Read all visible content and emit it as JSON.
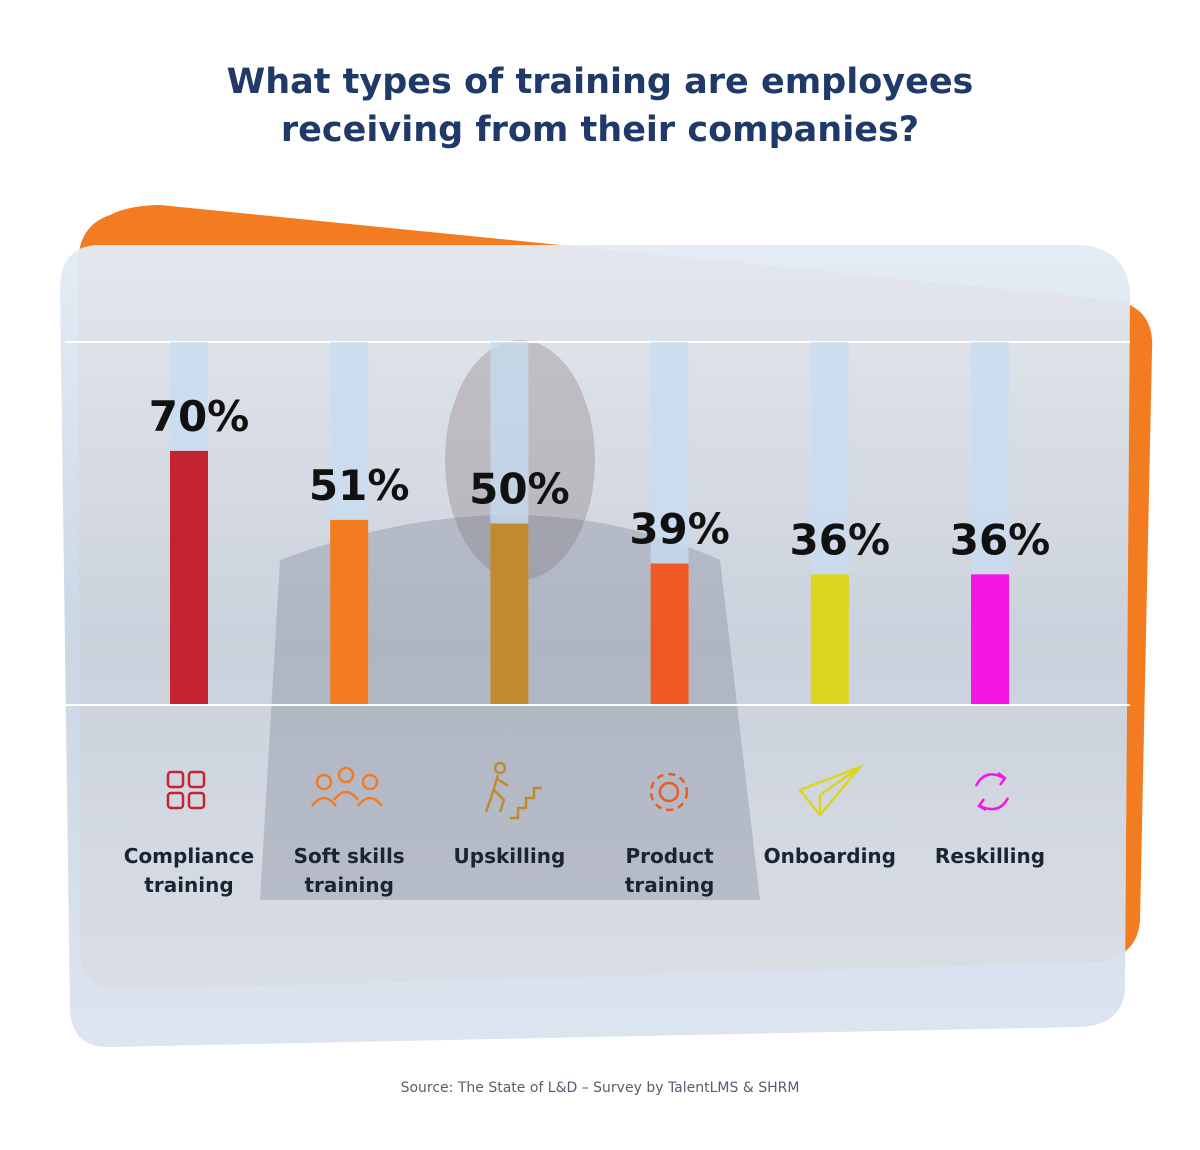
{
  "chart_data": {
    "type": "bar",
    "title": "What types of training are employees receiving from their companies?",
    "categories": [
      "Compliance training",
      "Soft skills training",
      "Upskilling",
      "Product training",
      "Onboarding",
      "Reskilling"
    ],
    "values": [
      70,
      51,
      50,
      39,
      36,
      36
    ],
    "value_labels": [
      "70%",
      "51%",
      "50%",
      "39%",
      "36%",
      "36%"
    ],
    "colors": [
      "#c3242f",
      "#f47c20",
      "#c28a2e",
      "#ef5a24",
      "#d9d61d",
      "#f516e6"
    ],
    "ylim": [
      0,
      100
    ],
    "source": "Source: The State of L&D – Survey by TalentLMS & SHRM"
  }
}
